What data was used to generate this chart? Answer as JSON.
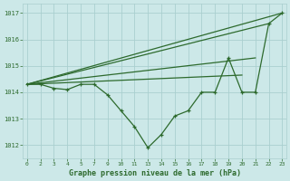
{
  "bg_color": "#cce8e8",
  "grid_color": "#aacfcf",
  "line_color": "#2d6a2d",
  "title": "Graphe pression niveau de la mer (hPa)",
  "ylim": [
    1011.5,
    1017.35
  ],
  "yticks": [
    1012,
    1013,
    1014,
    1015,
    1016,
    1017
  ],
  "x_labels": [
    "0",
    "2",
    "3",
    "4",
    "5",
    "7",
    "9",
    "10",
    "11",
    "13",
    "14",
    "15",
    "16",
    "17",
    "18",
    "19",
    "20",
    "21",
    "22",
    "23"
  ],
  "lines": [
    {
      "xi": [
        0,
        1,
        2,
        3,
        4,
        5,
        6,
        7,
        8,
        9,
        10,
        11,
        12,
        13,
        14,
        15,
        16,
        17,
        18,
        19
      ],
      "y": [
        1014.3,
        1014.3,
        1014.15,
        1014.1,
        1014.3,
        1014.3,
        1013.9,
        1013.3,
        1012.7,
        1011.9,
        1012.4,
        1013.1,
        1013.3,
        1014.0,
        1014.0,
        1015.3,
        1014.0,
        1014.0,
        1016.6,
        1017.0
      ]
    },
    {
      "xi": [
        0,
        19
      ],
      "y": [
        1014.3,
        1017.0
      ]
    },
    {
      "xi": [
        0,
        18
      ],
      "y": [
        1014.3,
        1016.6
      ]
    },
    {
      "xi": [
        0,
        17
      ],
      "y": [
        1014.3,
        1015.3
      ]
    },
    {
      "xi": [
        0,
        16
      ],
      "y": [
        1014.3,
        1014.65
      ]
    }
  ]
}
